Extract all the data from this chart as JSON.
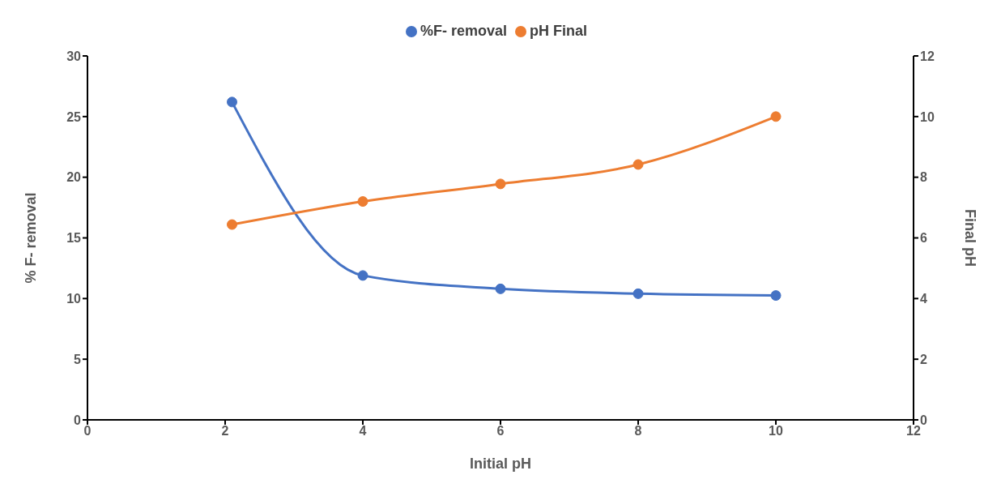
{
  "chart_data": {
    "type": "line",
    "xlabel": "Initial pH",
    "ylabel": "% F- removal",
    "y2label": "Final pH",
    "x": [
      2.1,
      4,
      6,
      8,
      10
    ],
    "series": [
      {
        "name": "%F- removal",
        "color": "#4472c4",
        "values": [
          26.2,
          11.9,
          10.8,
          10.4,
          10.25
        ]
      },
      {
        "name": "pH Final",
        "color": "#ed7d31",
        "values": [
          6.44,
          7.2,
          7.78,
          8.42,
          10.0
        ],
        "axis": "y2"
      }
    ],
    "xlim": [
      0,
      12
    ],
    "xticks": [
      0,
      2,
      4,
      6,
      8,
      10,
      12
    ],
    "ylim": [
      0,
      30
    ],
    "yticks": [
      0,
      5,
      10,
      15,
      20,
      25,
      30
    ],
    "y2lim": [
      0,
      12
    ],
    "y2ticks": [
      0,
      2,
      4,
      6,
      8,
      10,
      12
    ],
    "legend": "top",
    "marker": "circle",
    "line_style": "solid",
    "grid": false
  }
}
